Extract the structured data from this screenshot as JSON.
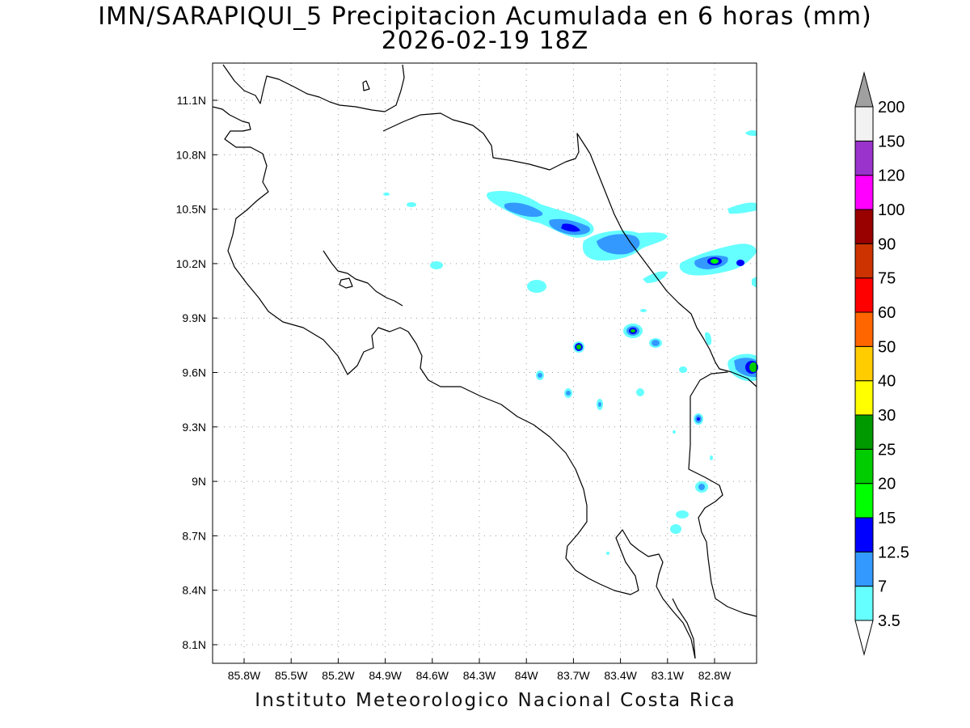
{
  "title_line1": "IMN/SARAPIQUI_5 Precipitacion Acumulada en 6 horas (mm)",
  "title_line2": "2026-02-19 18Z",
  "credit": "Instituto Meteorologico Nacional Costa Rica",
  "map": {
    "lon_labels": [
      "85.8W",
      "85.5W",
      "85.2W",
      "84.9W",
      "84.6W",
      "84.3W",
      "84W",
      "83.7W",
      "83.4W",
      "83.1W",
      "82.8W"
    ],
    "lat_labels": [
      "11.1N",
      "10.8N",
      "10.5N",
      "10.2N",
      "9.9N",
      "9.6N",
      "9.3N",
      "9N",
      "8.7N",
      "8.4N",
      "8.1N"
    ],
    "grid": true
  },
  "colorbar": {
    "levels": [
      "3.5",
      "7",
      "12.5",
      "15",
      "20",
      "25",
      "30",
      "40",
      "50",
      "60",
      "75",
      "90",
      "100",
      "120",
      "150",
      "200"
    ],
    "colors": [
      "#ffffff",
      "#66ffff",
      "#3399ff",
      "#0000ff",
      "#00ff00",
      "#00cc00",
      "#009900",
      "#ffff00",
      "#ffcc00",
      "#ff6600",
      "#ff0000",
      "#cc3300",
      "#990000",
      "#ff00ff",
      "#9933cc",
      "#f2f2f2",
      "#a0a0a0"
    ]
  }
}
